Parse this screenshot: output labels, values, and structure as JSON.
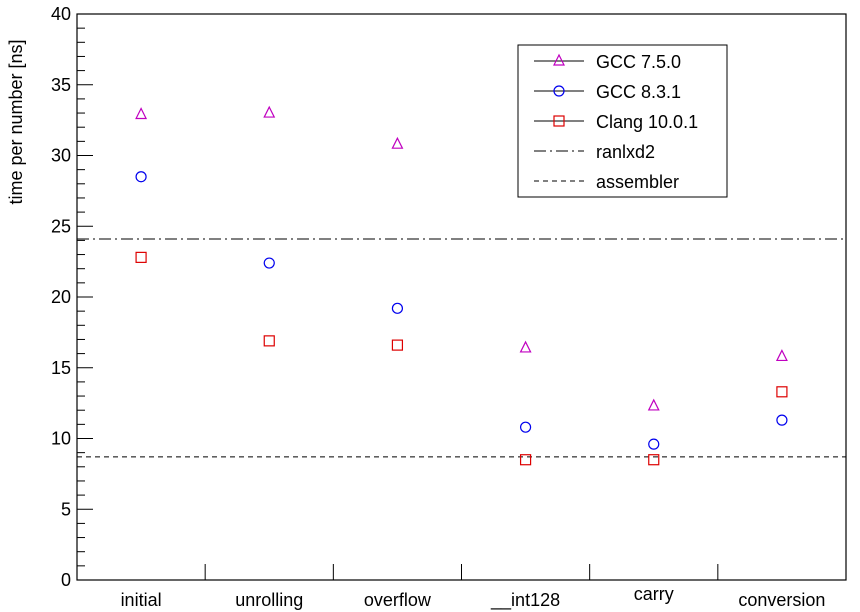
{
  "chart_data": {
    "type": "scatter",
    "ylabel": "time per number [ns]",
    "xlabel": "",
    "ylim": [
      0,
      40
    ],
    "categories": [
      "initial",
      "unrolling",
      "overflow",
      "__int128",
      "carry",
      "conversion"
    ],
    "y_major_ticks": [
      0,
      5,
      10,
      15,
      20,
      25,
      30,
      35,
      40
    ],
    "series": [
      {
        "name": "GCC 7.5.0",
        "marker": "triangle",
        "color": "#c000c0",
        "values": [
          32.9,
          33.0,
          30.8,
          16.4,
          12.3,
          15.8
        ]
      },
      {
        "name": "GCC 8.3.1",
        "marker": "circle",
        "color": "#0000ee",
        "values": [
          28.5,
          22.4,
          19.2,
          10.8,
          9.6,
          11.3
        ]
      },
      {
        "name": "Clang 10.0.1",
        "marker": "square",
        "color": "#dd0000",
        "values": [
          22.8,
          16.9,
          16.6,
          8.5,
          8.5,
          13.3
        ]
      }
    ],
    "reference_lines": [
      {
        "name": "ranlxd2",
        "style": "dash-dot",
        "value": 24.1
      },
      {
        "name": "assembler",
        "style": "dashed",
        "value": 8.7
      }
    ],
    "legend_placement": "top-right",
    "grid": false
  }
}
